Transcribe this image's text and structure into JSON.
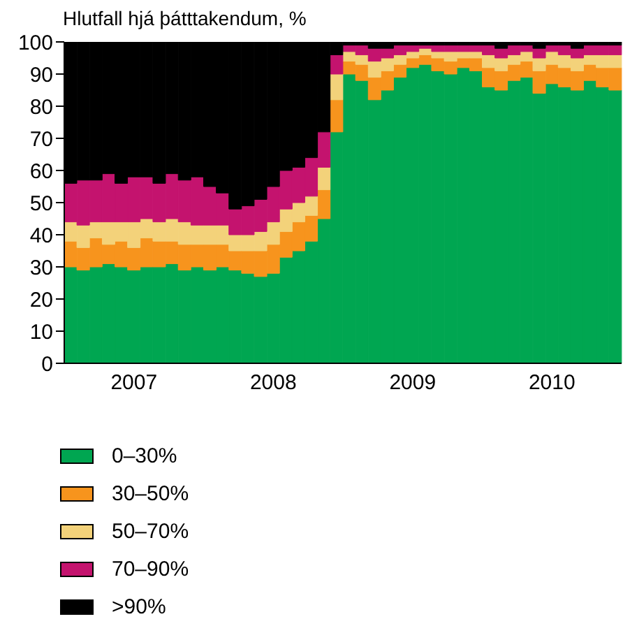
{
  "chart_data": {
    "type": "bar",
    "stacked": true,
    "ylabel": "Hlutfall hjá þátttakendum, %",
    "categories": [
      null,
      null,
      null,
      null,
      null,
      "2007",
      null,
      null,
      null,
      null,
      null,
      null,
      null,
      null,
      null,
      null,
      "2008",
      null,
      null,
      null,
      null,
      null,
      null,
      null,
      null,
      null,
      null,
      "2009",
      null,
      null,
      null,
      null,
      null,
      null,
      null,
      null,
      null,
      null,
      "2010",
      null,
      null,
      null,
      null,
      null
    ],
    "ylim": [
      0,
      100
    ],
    "yticks": [
      0,
      10,
      20,
      30,
      40,
      50,
      60,
      70,
      80,
      90,
      100
    ],
    "grid": false,
    "legend": "bottom",
    "series": [
      {
        "name": "0–30%",
        "color": "#00a651",
        "values": [
          30,
          29,
          30,
          31,
          30,
          29,
          30,
          30,
          31,
          29,
          30,
          29,
          30,
          29,
          28,
          27,
          28,
          33,
          35,
          38,
          45,
          72,
          90,
          88,
          82,
          85,
          89,
          92,
          93,
          91,
          90,
          92,
          91,
          86,
          85,
          88,
          89,
          84,
          87,
          86,
          85,
          88,
          86,
          85
        ]
      },
      {
        "name": "30–50%",
        "color": "#f7941d",
        "values": [
          8,
          7,
          9,
          6,
          8,
          7,
          9,
          8,
          7,
          8,
          7,
          8,
          7,
          6,
          7,
          8,
          9,
          8,
          9,
          8,
          9,
          10,
          4,
          5,
          7,
          6,
          4,
          3,
          3,
          4,
          4,
          3,
          4,
          6,
          6,
          5,
          5,
          7,
          6,
          6,
          6,
          5,
          6,
          7
        ]
      },
      {
        "name": "50–70%",
        "color": "#f3d27a",
        "values": [
          6,
          7,
          5,
          7,
          6,
          8,
          6,
          6,
          7,
          7,
          6,
          6,
          6,
          5,
          5,
          6,
          7,
          7,
          6,
          6,
          7,
          8,
          3,
          3,
          5,
          4,
          3,
          2,
          2,
          2,
          3,
          2,
          2,
          4,
          4,
          3,
          3,
          4,
          4,
          4,
          4,
          3,
          4,
          4
        ]
      },
      {
        "name": "70–90%",
        "color": "#c4136e",
        "values": [
          12,
          14,
          13,
          15,
          12,
          14,
          13,
          12,
          14,
          13,
          15,
          12,
          10,
          8,
          9,
          10,
          11,
          12,
          11,
          12,
          11,
          6,
          2,
          3,
          4,
          3,
          3,
          2,
          1,
          2,
          2,
          2,
          2,
          3,
          3,
          3,
          2,
          3,
          2,
          3,
          3,
          3,
          3,
          3
        ]
      },
      {
        "name": ">90%",
        "color": "#000000",
        "values": [
          44,
          43,
          43,
          41,
          44,
          42,
          42,
          44,
          41,
          43,
          42,
          45,
          47,
          52,
          51,
          49,
          45,
          40,
          39,
          36,
          28,
          4,
          1,
          1,
          2,
          2,
          1,
          1,
          1,
          1,
          1,
          1,
          1,
          1,
          2,
          1,
          1,
          2,
          1,
          1,
          2,
          1,
          1,
          1
        ]
      }
    ]
  }
}
